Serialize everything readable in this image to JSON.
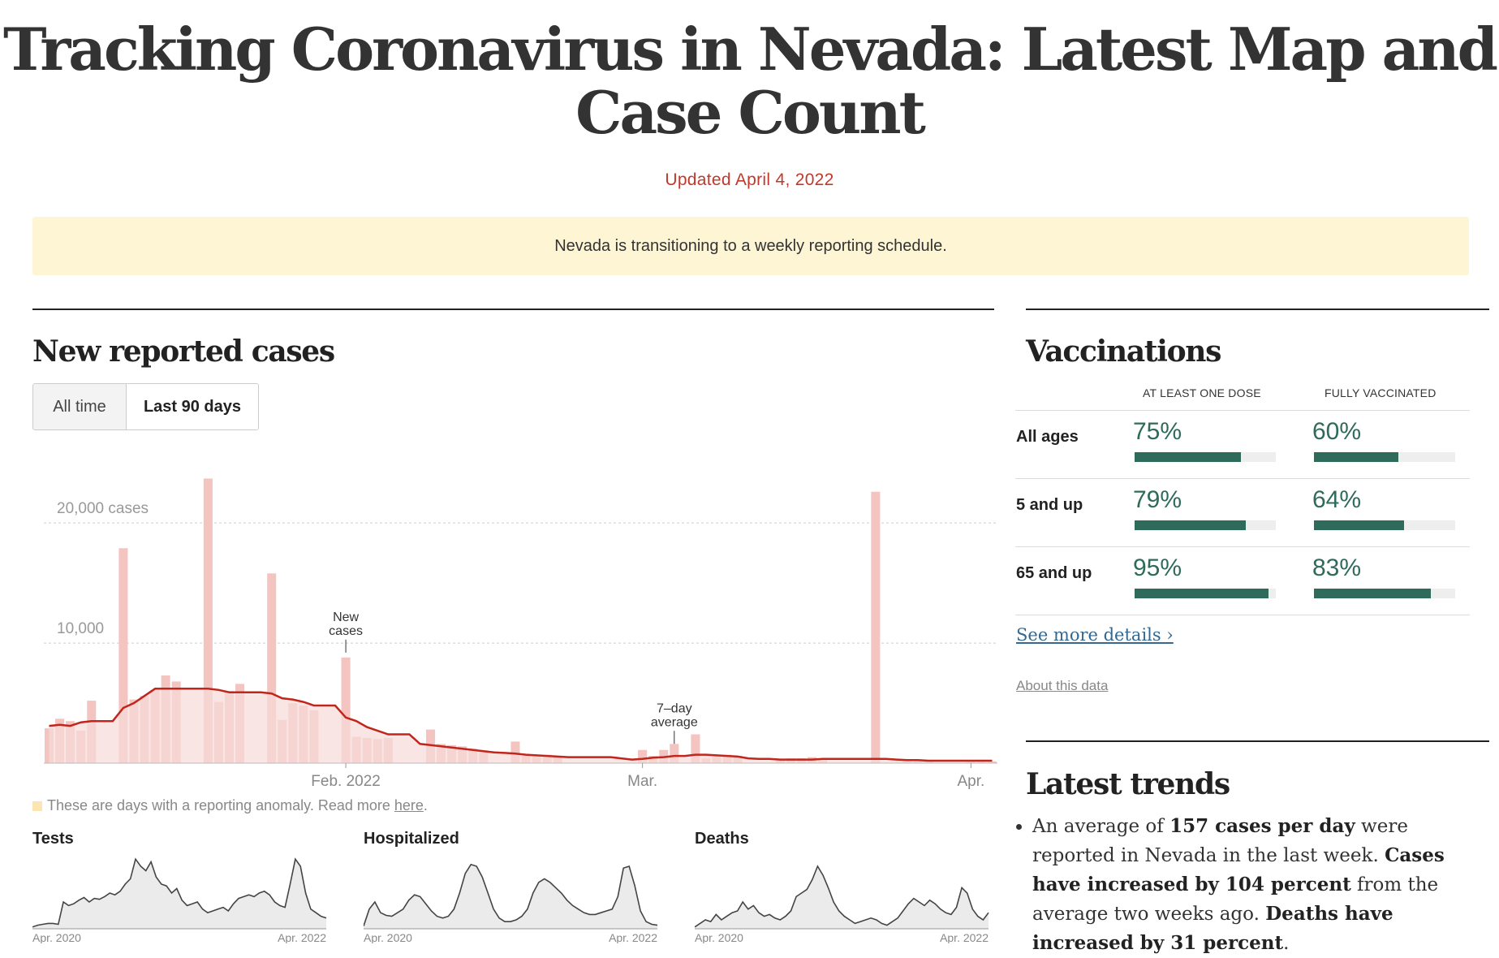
{
  "title": "Tracking Coronavirus in Nevada: Latest Map and Case Count",
  "updated": "Updated April 4, 2022",
  "banner": "Nevada is transitioning to a weekly reporting schedule.",
  "cases": {
    "heading": "New reported cases",
    "tabs": [
      "All time",
      "Last 90 days"
    ],
    "active_tab": "Last 90 days",
    "anomaly_note": {
      "prefix": "These are days with a reporting anomaly. Read more ",
      "link": "here",
      "suffix": "."
    },
    "annotations": {
      "new_cases": "New cases",
      "avg": "7–day average"
    }
  },
  "colors": {
    "bar": "#f3c4c0",
    "line": "#c0261c",
    "area": "#f7dcd9",
    "anomaly": "#fbe5b3",
    "vax": "#2f6b5a",
    "link": "#326891"
  },
  "chart_data": [
    {
      "type": "bar",
      "title": "",
      "y_tick_labels": [
        "10,000",
        "20,000 cases"
      ],
      "x_tick_labels": [
        "Feb. 2022",
        "Mar.",
        "Apr."
      ],
      "ylim": [
        0,
        24000
      ],
      "grid": true,
      "x": [
        "2022-01-04",
        "2022-01-05",
        "2022-01-06",
        "2022-01-07",
        "2022-01-08",
        "2022-01-09",
        "2022-01-10",
        "2022-01-11",
        "2022-01-12",
        "2022-01-13",
        "2022-01-14",
        "2022-01-15",
        "2022-01-16",
        "2022-01-17",
        "2022-01-18",
        "2022-01-19",
        "2022-01-20",
        "2022-01-21",
        "2022-01-22",
        "2022-01-23",
        "2022-01-24",
        "2022-01-25",
        "2022-01-26",
        "2022-01-27",
        "2022-01-28",
        "2022-01-29",
        "2022-01-30",
        "2022-01-31",
        "2022-02-01",
        "2022-02-02",
        "2022-02-03",
        "2022-02-04",
        "2022-02-05",
        "2022-02-06",
        "2022-02-07",
        "2022-02-08",
        "2022-02-09",
        "2022-02-10",
        "2022-02-11",
        "2022-02-12",
        "2022-02-13",
        "2022-02-14",
        "2022-02-15",
        "2022-02-16",
        "2022-02-17",
        "2022-02-18",
        "2022-02-19",
        "2022-02-20",
        "2022-02-21",
        "2022-02-22",
        "2022-02-23",
        "2022-02-24",
        "2022-02-25",
        "2022-02-26",
        "2022-02-27",
        "2022-02-28",
        "2022-03-01",
        "2022-03-02",
        "2022-03-03",
        "2022-03-04",
        "2022-03-05",
        "2022-03-06",
        "2022-03-07",
        "2022-03-08",
        "2022-03-09",
        "2022-03-10",
        "2022-03-11",
        "2022-03-12",
        "2022-03-13",
        "2022-03-14",
        "2022-03-15",
        "2022-03-16",
        "2022-03-17",
        "2022-03-18",
        "2022-03-19",
        "2022-03-20",
        "2022-03-21",
        "2022-03-22",
        "2022-03-23",
        "2022-03-24",
        "2022-03-25",
        "2022-03-26",
        "2022-03-27",
        "2022-03-28",
        "2022-03-29",
        "2022-03-30",
        "2022-03-31",
        "2022-04-01",
        "2022-04-02",
        "2022-04-03"
      ],
      "series": [
        {
          "name": "New cases",
          "type": "bar",
          "values": [
            2900,
            3700,
            3500,
            2700,
            5200,
            0,
            0,
            17900,
            5300,
            5600,
            6100,
            7300,
            6800,
            0,
            0,
            23700,
            5100,
            6000,
            6600,
            0,
            0,
            15800,
            3600,
            5000,
            4800,
            4400,
            0,
            0,
            8800,
            2200,
            2100,
            2000,
            2100,
            0,
            0,
            0,
            2800,
            1600,
            1500,
            1400,
            1200,
            1000,
            0,
            0,
            1800,
            600,
            700,
            700,
            600,
            0,
            0,
            0,
            0,
            0,
            0,
            0,
            1100,
            600,
            1100,
            1600,
            0,
            2400,
            400,
            600,
            700,
            600,
            0,
            0,
            0,
            300,
            400,
            400,
            500,
            400,
            0,
            0,
            0,
            0,
            22600,
            0,
            0,
            200,
            250,
            200,
            0,
            0,
            0,
            200,
            200,
            150
          ]
        },
        {
          "name": "7–day average",
          "type": "line",
          "values": [
            3100,
            3200,
            3100,
            3400,
            3500,
            3500,
            3500,
            4600,
            5000,
            5600,
            6200,
            6200,
            6200,
            6200,
            6200,
            6200,
            6100,
            5900,
            5900,
            5900,
            5900,
            5800,
            5400,
            5300,
            5100,
            4800,
            4800,
            4800,
            3800,
            3500,
            3000,
            2700,
            2400,
            2400,
            2400,
            1600,
            1500,
            1400,
            1300,
            1200,
            1100,
            1000,
            900,
            850,
            800,
            700,
            650,
            600,
            550,
            500,
            500,
            500,
            500,
            500,
            400,
            300,
            350,
            450,
            500,
            600,
            600,
            700,
            700,
            650,
            600,
            550,
            400,
            350,
            350,
            300,
            300,
            300,
            300,
            350,
            350,
            350,
            350,
            350,
            350,
            350,
            300,
            250,
            250,
            200,
            200,
            200,
            200,
            200,
            200,
            200
          ]
        },
        {
          "name": "Anomaly",
          "type": "bar",
          "anomaly_days": [
            "2022-03-22"
          ]
        }
      ]
    },
    {
      "type": "area",
      "title": "Tests",
      "x_tick_labels": [
        "Apr. 2020",
        "Apr. 2022"
      ],
      "values": [
        2,
        4,
        5,
        6,
        6,
        5,
        30,
        26,
        28,
        32,
        35,
        30,
        34,
        33,
        36,
        40,
        38,
        42,
        50,
        56,
        78,
        70,
        65,
        75,
        58,
        50,
        48,
        40,
        45,
        32,
        26,
        28,
        30,
        22,
        18,
        20,
        22,
        24,
        20,
        28,
        34,
        36,
        38,
        36,
        40,
        42,
        38,
        30,
        26,
        24,
        50,
        78,
        70,
        40,
        22,
        18,
        14,
        12
      ]
    },
    {
      "type": "area",
      "title": "Hospitalized",
      "x_tick_labels": [
        "Apr. 2020",
        "Apr. 2022"
      ],
      "values": [
        3,
        22,
        30,
        18,
        15,
        14,
        18,
        22,
        32,
        38,
        36,
        28,
        20,
        14,
        12,
        14,
        22,
        40,
        62,
        72,
        70,
        58,
        40,
        22,
        12,
        8,
        8,
        10,
        14,
        22,
        40,
        52,
        56,
        52,
        46,
        40,
        32,
        26,
        22,
        18,
        16,
        16,
        18,
        20,
        22,
        36,
        68,
        70,
        48,
        20,
        8,
        5,
        4
      ]
    },
    {
      "type": "area",
      "title": "Deaths",
      "x_tick_labels": [
        "Apr. 2020",
        "Apr. 2022"
      ],
      "values": [
        2,
        6,
        10,
        8,
        16,
        10,
        14,
        18,
        20,
        30,
        22,
        26,
        18,
        14,
        16,
        12,
        10,
        14,
        20,
        36,
        40,
        44,
        55,
        70,
        60,
        46,
        30,
        20,
        14,
        10,
        6,
        8,
        10,
        12,
        10,
        6,
        4,
        8,
        12,
        20,
        28,
        34,
        30,
        26,
        32,
        28,
        22,
        18,
        16,
        24,
        46,
        40,
        22,
        14,
        10,
        18
      ]
    }
  ],
  "vaccinations": {
    "heading": "Vaccinations",
    "col_headers": [
      "AT LEAST ONE DOSE",
      "FULLY VACCINATED"
    ],
    "rows": [
      {
        "label": "All ages",
        "one_dose": "75%",
        "one_dose_frac": 0.75,
        "full": "60%",
        "full_frac": 0.6
      },
      {
        "label": "5 and up",
        "one_dose": "79%",
        "one_dose_frac": 0.79,
        "full": "64%",
        "full_frac": 0.64
      },
      {
        "label": "65 and up",
        "one_dose": "95%",
        "one_dose_frac": 0.95,
        "full": "83%",
        "full_frac": 0.83
      }
    ],
    "see_more": "See more details ›",
    "about": "About this data"
  },
  "trends": {
    "heading": "Latest trends",
    "item1": {
      "t1": "An average of ",
      "b1": "157 cases per day",
      "t2": " were reported in Nevada in the last week. ",
      "b2": "Cases have increased by 104 percent",
      "t3": " from the average two weeks ago. ",
      "b3": "Deaths have increased by 31 percent",
      "t4": "."
    }
  }
}
